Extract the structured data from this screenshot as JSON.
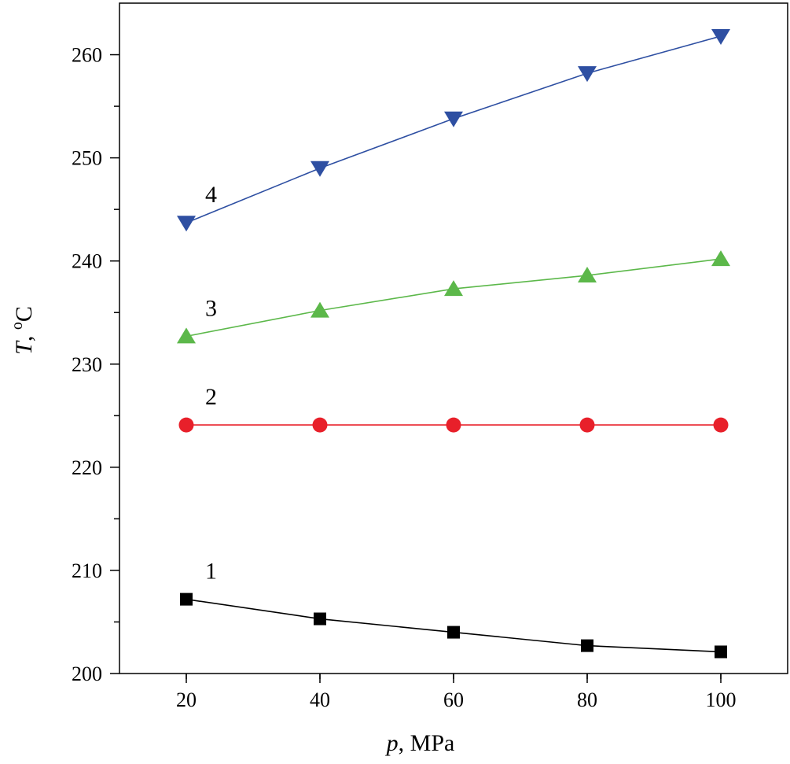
{
  "chart_data": {
    "type": "line",
    "xlabel_var": "p",
    "xlabel_unit": ", MPa",
    "ylabel_var": "T",
    "ylabel_unit": ", ",
    "ylabel_deg": "o",
    "ylabel_c": "C",
    "xlim": [
      10,
      110
    ],
    "ylim": [
      200,
      265
    ],
    "x_ticks": [
      20,
      40,
      60,
      80,
      100
    ],
    "x_tick_labels": [
      "20",
      "40",
      "60",
      "80",
      "100"
    ],
    "y_ticks": [
      200,
      210,
      220,
      230,
      240,
      250,
      260
    ],
    "y_tick_labels": [
      "200",
      "210",
      "220",
      "230",
      "240",
      "250",
      "260"
    ],
    "x": [
      20,
      40,
      60,
      80,
      100
    ],
    "series": [
      {
        "name": "1",
        "marker": "square",
        "color": "#000000",
        "values": [
          207.2,
          205.3,
          204.0,
          202.7,
          202.1
        ]
      },
      {
        "name": "2",
        "marker": "circle",
        "color": "#e8202a",
        "values": [
          224.1,
          224.1,
          224.1,
          224.1,
          224.1
        ]
      },
      {
        "name": "3",
        "marker": "triangle-up",
        "color": "#5cb84a",
        "values": [
          232.7,
          235.2,
          237.3,
          238.6,
          240.2
        ]
      },
      {
        "name": "4",
        "marker": "triangle-down",
        "color": "#2e4fa2",
        "values": [
          243.7,
          249.0,
          253.8,
          258.2,
          261.8
        ]
      }
    ],
    "line_colors": {
      "1": "#000000",
      "2": "#e8202a",
      "3": "#5cb84a",
      "4": "#2e4fa2"
    }
  }
}
